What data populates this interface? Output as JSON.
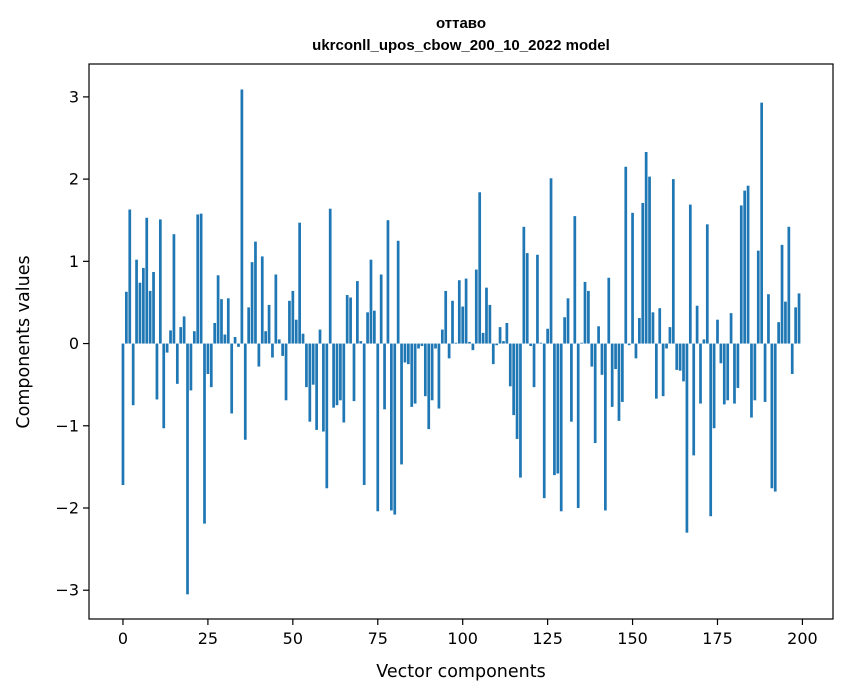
{
  "chart_data": {
    "type": "bar",
    "title_line1": "оттаво",
    "title_line2": "ukrconll_upos_cbow_200_10_2022 model",
    "xlabel": "Vector components",
    "ylabel": "Components values",
    "xlim": [
      -10,
      209
    ],
    "ylim": [
      -3.35,
      3.4
    ],
    "xticks": [
      0,
      25,
      50,
      75,
      100,
      125,
      150,
      175,
      200
    ],
    "yticks": [
      -3,
      -2,
      -1,
      0,
      1,
      2,
      3
    ],
    "bar_color": "#1f77b4",
    "grid": false,
    "legend": "none",
    "values": [
      -1.72,
      0.63,
      1.63,
      -0.75,
      1.02,
      0.74,
      0.92,
      1.53,
      0.64,
      0.87,
      -0.68,
      1.51,
      -1.03,
      -0.11,
      0.16,
      1.33,
      -0.49,
      0.2,
      0.33,
      -3.05,
      -0.57,
      0.15,
      1.57,
      1.58,
      -2.19,
      -0.37,
      -0.53,
      0.25,
      0.83,
      0.54,
      0.11,
      0.55,
      -0.85,
      0.08,
      -0.04,
      3.09,
      -1.17,
      0.44,
      0.99,
      1.24,
      -0.28,
      1.06,
      0.15,
      0.47,
      -0.17,
      0.84,
      0.05,
      -0.15,
      -0.69,
      0.52,
      0.64,
      0.29,
      1.47,
      0.12,
      -0.53,
      -0.95,
      -0.5,
      -1.05,
      0.17,
      -1.07,
      -1.76,
      1.64,
      -0.78,
      -0.75,
      -0.69,
      -0.96,
      0.59,
      0.56,
      -0.7,
      0.76,
      0.03,
      -1.72,
      0.38,
      1.02,
      0.4,
      -2.04,
      0.84,
      -0.8,
      1.5,
      -2.03,
      -2.08,
      1.25,
      -1.47,
      -0.23,
      -0.25,
      -0.77,
      -0.73,
      -0.06,
      -0.03,
      -0.64,
      -1.04,
      -0.69,
      -0.06,
      -0.79,
      0.17,
      0.64,
      -0.18,
      0.52,
      0.01,
      0.77,
      0.45,
      0.79,
      0.02,
      -0.08,
      0.9,
      1.84,
      0.13,
      0.68,
      0.47,
      -0.25,
      -0.02,
      0.2,
      0.03,
      0.25,
      -0.52,
      -0.87,
      -1.16,
      -1.63,
      1.42,
      1.1,
      -0.03,
      -0.53,
      1.08,
      0.01,
      -1.88,
      0.18,
      2.01,
      -1.6,
      -1.58,
      -2.04,
      0.32,
      0.55,
      -0.95,
      1.55,
      -2.0,
      0.01,
      0.75,
      0.64,
      -0.28,
      -1.21,
      0.21,
      -0.38,
      -2.03,
      0.8,
      -0.77,
      -0.31,
      -0.94,
      -0.71,
      2.15,
      -0.02,
      1.59,
      -0.18,
      0.31,
      1.71,
      2.33,
      2.03,
      0.38,
      -0.67,
      0.43,
      -0.64,
      -0.06,
      0.2,
      2.0,
      -0.32,
      -0.33,
      -0.46,
      -2.3,
      1.69,
      -1.36,
      0.46,
      -0.73,
      0.05,
      1.45,
      -2.1,
      -1.03,
      0.29,
      -0.24,
      -0.74,
      -0.69,
      0.37,
      -0.73,
      -0.54,
      1.68,
      1.86,
      1.92,
      -0.9,
      -0.69,
      1.13,
      2.93,
      -0.71,
      0.6,
      -1.76,
      -1.8,
      0.26,
      1.2,
      0.51,
      1.42,
      -0.37,
      0.44,
      0.61
    ]
  }
}
